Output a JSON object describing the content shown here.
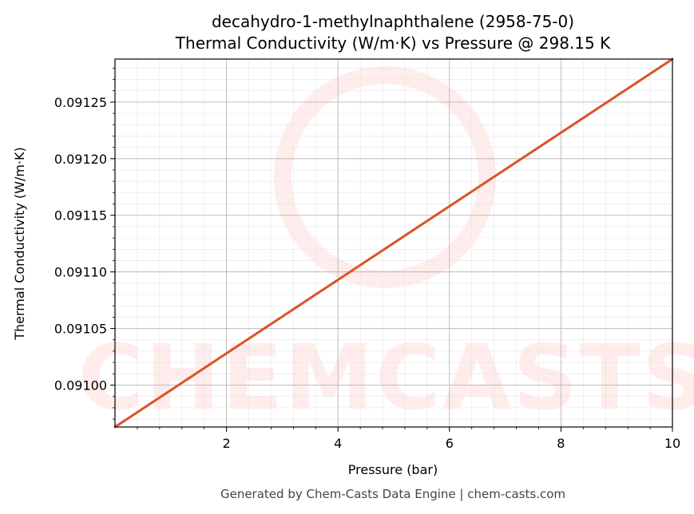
{
  "chart_data": {
    "type": "line",
    "title": "decahydro-1-methylnaphthalene (2958-75-0)",
    "subtitle": "Thermal Conductivity (W/m·K) vs Pressure @ 298.15 K",
    "xlabel": "Pressure (bar)",
    "ylabel": "Thermal Conductivity (W/m·K)",
    "xlim": [
      0.0,
      10.0
    ],
    "ylim": [
      0.090963,
      0.091288
    ],
    "x_ticks": [
      2,
      4,
      6,
      8,
      10
    ],
    "x_tick_labels": [
      "2",
      "4",
      "6",
      "8",
      "10"
    ],
    "y_ticks": [
      0.091,
      0.09105,
      0.0911,
      0.09115,
      0.0912,
      0.09125
    ],
    "y_tick_labels": [
      "0.09100",
      "0.09105",
      "0.09110",
      "0.09115",
      "0.09120",
      "0.09125"
    ],
    "grid": true,
    "line_color": "#d95426",
    "series": [
      {
        "x": [
          0.0,
          2.0,
          4.0,
          6.0,
          8.0,
          10.0
        ],
        "values": [
          0.090963,
          0.091028,
          0.091093,
          0.091158,
          0.091223,
          0.091288
        ]
      }
    ]
  },
  "watermark": {
    "text": "CHEMCASTS",
    "color": "#ff6f61"
  },
  "footer": "Generated by Chem-Casts Data Engine | chem-casts.com"
}
